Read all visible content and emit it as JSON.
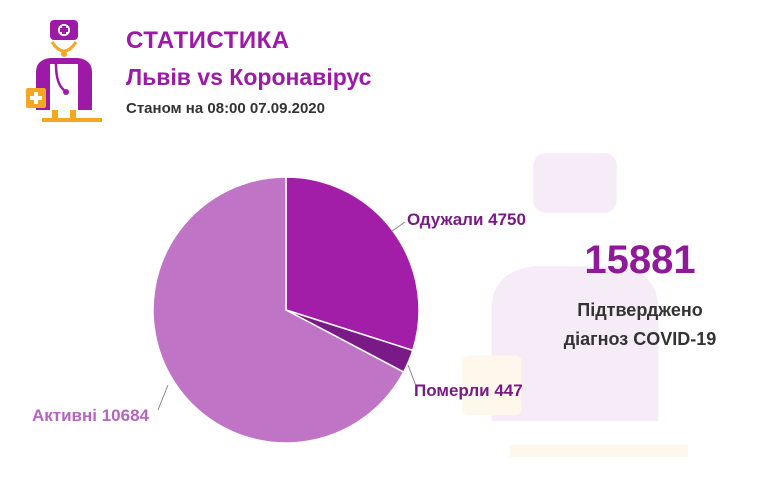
{
  "header": {
    "title": "СТАТИСТИКА",
    "subtitle": "Львів vs Коронавірус",
    "date": "Станом на 08:00 07.09.2020"
  },
  "summary": {
    "total": "15881",
    "caption_line1": "Підтверджено",
    "caption_line2": "діагноз COVID-19"
  },
  "colors": {
    "recovered": "#a21ea9",
    "died": "#7a1a86",
    "active": "#c074c5",
    "accent": "#9c1aa6",
    "orange": "#f5a623"
  },
  "chart_data": {
    "type": "pie",
    "slices": [
      {
        "name": "Одужали",
        "value": 4750,
        "label": "Одужали 4750"
      },
      {
        "name": "Померли",
        "value": 447,
        "label": "Померли 447"
      },
      {
        "name": "Активні",
        "value": 10684,
        "label": "Активні 10684"
      }
    ]
  }
}
